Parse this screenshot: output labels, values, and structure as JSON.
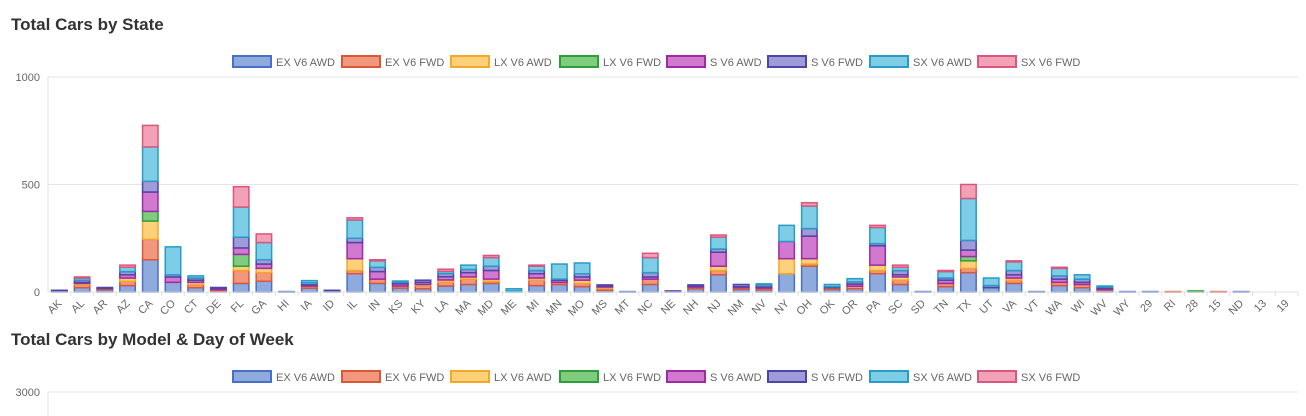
{
  "sections": [
    {
      "title": "Total Cars by State"
    },
    {
      "title": "Total Cars by Model & Day of Week"
    }
  ],
  "legend": [
    {
      "label": "EX V6 AWD",
      "fill": "#8faadc",
      "stroke": "#4a6fc7"
    },
    {
      "label": "EX V6 FWD",
      "fill": "#f0977c",
      "stroke": "#d9573a"
    },
    {
      "label": "LX V6 AWD",
      "fill": "#fdd17a",
      "stroke": "#f4a72a"
    },
    {
      "label": "LX V6 FWD",
      "fill": "#7fcc7f",
      "stroke": "#2e9e3c"
    },
    {
      "label": "S V6 AWD",
      "fill": "#d079cf",
      "stroke": "#9e2aa5"
    },
    {
      "label": "S V6 FWD",
      "fill": "#9e9bd8",
      "stroke": "#4b47a8"
    },
    {
      "label": "SX V6 AWD",
      "fill": "#7dcde6",
      "stroke": "#2a9bc7"
    },
    {
      "label": "SX V6 FWD",
      "fill": "#f3a1b6",
      "stroke": "#d8577e"
    }
  ],
  "chart_data": [
    {
      "type": "bar",
      "stacked": true,
      "title": "Total Cars by State",
      "ylim": [
        0,
        1000
      ],
      "yticks": [
        0,
        500,
        1000
      ],
      "grid": true,
      "legend_position": "top",
      "categories": [
        "AK",
        "AL",
        "AR",
        "AZ",
        "CA",
        "CO",
        "CT",
        "DE",
        "FL",
        "GA",
        "HI",
        "IA",
        "ID",
        "IL",
        "IN",
        "KS",
        "KY",
        "LA",
        "MA",
        "MD",
        "ME",
        "MI",
        "MN",
        "MO",
        "MS",
        "MT",
        "NC",
        "NE",
        "NH",
        "NJ",
        "NM",
        "NV",
        "NY",
        "OH",
        "OK",
        "OR",
        "PA",
        "SC",
        "SD",
        "TN",
        "TX",
        "UT",
        "VA",
        "VT",
        "WA",
        "WI",
        "WV",
        "WY",
        "29",
        "RI",
        "28",
        "15",
        "ND",
        "13",
        "19"
      ],
      "series": [
        {
          "name": "EX V6 AWD",
          "values": [
            4,
            20,
            10,
            30,
            150,
            45,
            20,
            5,
            40,
            50,
            2,
            18,
            5,
            85,
            40,
            18,
            15,
            28,
            35,
            40,
            5,
            30,
            35,
            25,
            8,
            2,
            35,
            3,
            15,
            80,
            12,
            10,
            85,
            120,
            12,
            15,
            85,
            35,
            2,
            25,
            90,
            20,
            40,
            2,
            30,
            20,
            8,
            2,
            2,
            0,
            0,
            0,
            2,
            0,
            0
          ]
        },
        {
          "name": "EX V6 FWD",
          "values": [
            2,
            15,
            6,
            20,
            95,
            0,
            15,
            6,
            60,
            40,
            0,
            10,
            0,
            15,
            20,
            10,
            15,
            18,
            25,
            10,
            0,
            25,
            10,
            15,
            10,
            0,
            25,
            0,
            8,
            20,
            8,
            8,
            0,
            10,
            8,
            12,
            15,
            20,
            0,
            15,
            20,
            0,
            15,
            0,
            15,
            15,
            5,
            0,
            0,
            2,
            0,
            2,
            0,
            0,
            0
          ]
        },
        {
          "name": "LX V6 AWD",
          "values": [
            0,
            5,
            0,
            15,
            85,
            0,
            10,
            0,
            20,
            20,
            0,
            0,
            0,
            55,
            0,
            0,
            5,
            10,
            10,
            10,
            0,
            10,
            0,
            15,
            5,
            0,
            0,
            0,
            0,
            20,
            0,
            0,
            70,
            25,
            0,
            0,
            25,
            15,
            0,
            0,
            35,
            0,
            10,
            0,
            0,
            0,
            0,
            0,
            0,
            0,
            0,
            0,
            0,
            0,
            0
          ]
        },
        {
          "name": "LX V6 FWD",
          "values": [
            0,
            0,
            0,
            0,
            45,
            0,
            0,
            0,
            55,
            0,
            0,
            0,
            0,
            0,
            0,
            0,
            0,
            0,
            0,
            0,
            0,
            0,
            0,
            0,
            0,
            0,
            0,
            0,
            0,
            0,
            0,
            0,
            0,
            0,
            0,
            0,
            0,
            0,
            0,
            0,
            20,
            0,
            0,
            0,
            0,
            0,
            0,
            0,
            0,
            0,
            5,
            0,
            0,
            0,
            0
          ]
        },
        {
          "name": "S V6 AWD",
          "values": [
            0,
            5,
            0,
            15,
            90,
            25,
            10,
            6,
            30,
            20,
            0,
            5,
            0,
            75,
            35,
            10,
            10,
            15,
            20,
            40,
            0,
            20,
            10,
            15,
            5,
            0,
            10,
            0,
            5,
            65,
            5,
            5,
            80,
            105,
            0,
            10,
            90,
            10,
            0,
            15,
            30,
            0,
            15,
            0,
            15,
            10,
            5,
            0,
            0,
            0,
            0,
            0,
            0,
            0,
            0
          ]
        },
        {
          "name": "S V6 FWD",
          "values": [
            2,
            10,
            5,
            15,
            50,
            10,
            10,
            4,
            50,
            20,
            0,
            10,
            3,
            20,
            20,
            8,
            10,
            15,
            15,
            20,
            0,
            15,
            5,
            15,
            5,
            0,
            20,
            2,
            5,
            15,
            10,
            10,
            0,
            35,
            5,
            10,
            10,
            20,
            0,
            10,
            45,
            10,
            20,
            0,
            15,
            15,
            5,
            0,
            0,
            0,
            0,
            0,
            0,
            0,
            0
          ]
        },
        {
          "name": "SX V6 AWD",
          "values": [
            0,
            10,
            0,
            20,
            160,
            130,
            10,
            0,
            140,
            80,
            0,
            10,
            0,
            85,
            30,
            5,
            0,
            10,
            20,
            40,
            10,
            20,
            70,
            50,
            0,
            0,
            70,
            0,
            0,
            55,
            0,
            5,
            75,
            105,
            10,
            15,
            75,
            15,
            0,
            30,
            195,
            35,
            40,
            0,
            35,
            20,
            5,
            0,
            0,
            0,
            0,
            0,
            0,
            0,
            0
          ]
        },
        {
          "name": "SX V6 FWD",
          "values": [
            0,
            5,
            0,
            10,
            100,
            0,
            0,
            0,
            95,
            40,
            0,
            0,
            0,
            10,
            5,
            0,
            0,
            10,
            0,
            10,
            0,
            5,
            0,
            0,
            0,
            0,
            20,
            0,
            0,
            10,
            0,
            0,
            0,
            15,
            0,
            0,
            10,
            10,
            0,
            5,
            65,
            0,
            5,
            0,
            5,
            0,
            0,
            0,
            0,
            0,
            0,
            0,
            0,
            0,
            0
          ]
        }
      ]
    },
    {
      "type": "bar",
      "stacked": true,
      "title": "Total Cars by Model & Day of Week",
      "yticks_visible": [
        3000
      ],
      "legend_position": "top"
    }
  ]
}
